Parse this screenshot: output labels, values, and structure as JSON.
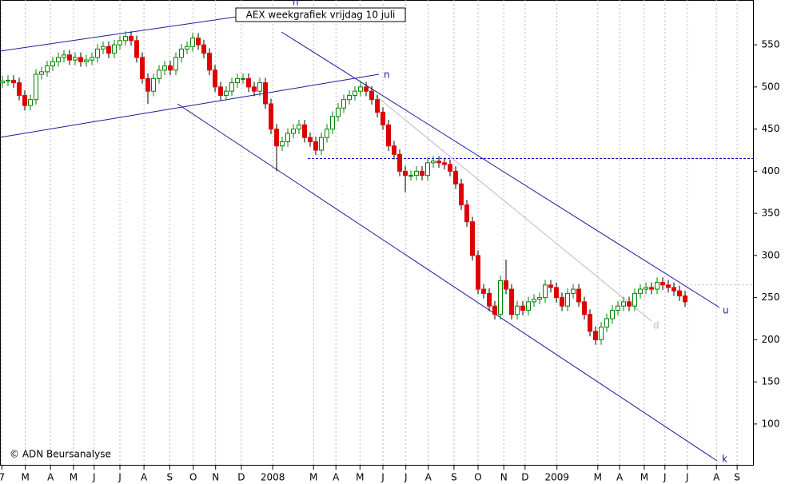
{
  "chart_data": {
    "type": "candlestick",
    "title": "AEX weekgrafiek vrijdag 10 juli",
    "credit": "© ADN Beursanalyse",
    "annotations": [
      "n",
      "n",
      "u",
      "k",
      "d"
    ],
    "series": {
      "up_color": "#008000",
      "down_color": "#e00000",
      "open": [
        505,
        507,
        508,
        505,
        490,
        478,
        485,
        515,
        518,
        525,
        530,
        535,
        538,
        532,
        535,
        530,
        532,
        535,
        545,
        548,
        540,
        550,
        555,
        560,
        555,
        535,
        510,
        495,
        510,
        520,
        525,
        520,
        535,
        545,
        548,
        558,
        550,
        540,
        520,
        500,
        490,
        495,
        505,
        510,
        510,
        500,
        495,
        505,
        480,
        450,
        430,
        435,
        445,
        450,
        455,
        440,
        435,
        425,
        440,
        450,
        465,
        475,
        485,
        490,
        495,
        500,
        495,
        485,
        470,
        455,
        430,
        420,
        400,
        395,
        395,
        400,
        395,
        410,
        412,
        410,
        408,
        400,
        385,
        360,
        340,
        300,
        260,
        255,
        240,
        230,
        270,
        260,
        230,
        240,
        235,
        245,
        248,
        250,
        265,
        262,
        250,
        240,
        255,
        260,
        245,
        230,
        210,
        200,
        215,
        225,
        235,
        240,
        245,
        240,
        255,
        260,
        262,
        260,
        268,
        265,
        262,
        258,
        252
      ],
      "high": [
        513,
        514,
        514,
        511,
        496,
        491,
        521,
        524,
        531,
        536,
        541,
        544,
        544,
        541,
        541,
        538,
        541,
        551,
        554,
        554,
        556,
        561,
        566,
        566,
        561,
        541,
        516,
        516,
        526,
        531,
        531,
        541,
        551,
        554,
        564,
        564,
        556,
        546,
        526,
        506,
        501,
        511,
        516,
        516,
        516,
        506,
        511,
        511,
        486,
        456,
        441,
        451,
        456,
        461,
        461,
        446,
        441,
        446,
        456,
        471,
        481,
        491,
        496,
        501,
        506,
        506,
        501,
        491,
        476,
        461,
        436,
        426,
        406,
        401,
        406,
        406,
        416,
        418,
        418,
        416,
        414,
        406,
        391,
        366,
        346,
        306,
        266,
        261,
        246,
        276,
        295,
        266,
        246,
        246,
        251,
        254,
        256,
        271,
        271,
        268,
        256,
        261,
        266,
        266,
        251,
        236,
        216,
        221,
        231,
        241,
        246,
        251,
        251,
        261,
        266,
        268,
        268,
        274,
        274,
        271,
        268,
        264,
        258
      ],
      "low": [
        499,
        501,
        499,
        484,
        472,
        472,
        479,
        509,
        512,
        519,
        524,
        529,
        526,
        526,
        524,
        524,
        526,
        529,
        539,
        534,
        534,
        544,
        549,
        549,
        529,
        504,
        480,
        489,
        504,
        514,
        514,
        514,
        529,
        539,
        542,
        544,
        534,
        514,
        494,
        484,
        484,
        489,
        499,
        504,
        494,
        489,
        489,
        474,
        444,
        400,
        424,
        429,
        439,
        444,
        434,
        429,
        419,
        419,
        434,
        444,
        459,
        469,
        479,
        484,
        489,
        489,
        479,
        464,
        449,
        424,
        414,
        394,
        375,
        389,
        389,
        389,
        389,
        404,
        404,
        402,
        394,
        379,
        354,
        334,
        294,
        254,
        249,
        234,
        224,
        224,
        254,
        224,
        224,
        229,
        229,
        239,
        242,
        244,
        256,
        244,
        234,
        234,
        249,
        239,
        224,
        204,
        194,
        194,
        209,
        219,
        229,
        234,
        234,
        234,
        249,
        254,
        254,
        254,
        259,
        256,
        252,
        246,
        239
      ],
      "close": [
        507,
        508,
        505,
        490,
        478,
        485,
        515,
        518,
        525,
        530,
        535,
        538,
        532,
        535,
        530,
        532,
        535,
        545,
        548,
        540,
        550,
        555,
        560,
        555,
        535,
        510,
        495,
        510,
        520,
        525,
        520,
        535,
        545,
        548,
        558,
        550,
        540,
        520,
        500,
        490,
        495,
        505,
        510,
        510,
        500,
        495,
        505,
        480,
        450,
        430,
        435,
        445,
        450,
        455,
        440,
        435,
        425,
        440,
        450,
        465,
        475,
        485,
        490,
        495,
        500,
        495,
        485,
        470,
        455,
        430,
        420,
        400,
        395,
        395,
        400,
        395,
        410,
        412,
        410,
        408,
        400,
        385,
        360,
        340,
        300,
        260,
        255,
        240,
        230,
        270,
        260,
        230,
        240,
        235,
        245,
        248,
        250,
        265,
        262,
        250,
        240,
        255,
        260,
        245,
        230,
        210,
        200,
        215,
        225,
        235,
        240,
        245,
        240,
        255,
        260,
        262,
        260,
        268,
        265,
        262,
        258,
        252,
        245
      ]
    },
    "hlines": [
      {
        "value": 415,
        "color": "#0000cc"
      },
      {
        "value": 265,
        "color": "#cccccc"
      }
    ],
    "xlim": [
      -0.43,
      134.14
    ],
    "xticks": [
      {
        "value": -0.1,
        "label": "7"
      },
      {
        "value": 4.1,
        "label": "M"
      },
      {
        "value": 8.6,
        "label": "A"
      },
      {
        "value": 12.7,
        "label": "M"
      },
      {
        "value": 16.4,
        "label": "J"
      },
      {
        "value": 21,
        "label": "J"
      },
      {
        "value": 25.3,
        "label": "A"
      },
      {
        "value": 29.9,
        "label": "S"
      },
      {
        "value": 34.1,
        "label": "O"
      },
      {
        "value": 38.1,
        "label": "N"
      },
      {
        "value": 42.7,
        "label": "D"
      },
      {
        "value": 48.3,
        "label": "2008"
      },
      {
        "value": 55.6,
        "label": "M"
      },
      {
        "value": 59.6,
        "label": "A"
      },
      {
        "value": 63.9,
        "label": "M"
      },
      {
        "value": 68,
        "label": "J"
      },
      {
        "value": 72.1,
        "label": "J"
      },
      {
        "value": 76.1,
        "label": "A"
      },
      {
        "value": 80.7,
        "label": "S"
      },
      {
        "value": 85,
        "label": "O"
      },
      {
        "value": 89.6,
        "label": "N"
      },
      {
        "value": 93.4,
        "label": "D"
      },
      {
        "value": 99.1,
        "label": "2009"
      },
      {
        "value": 106.4,
        "label": "M"
      },
      {
        "value": 110.3,
        "label": "A"
      },
      {
        "value": 114.7,
        "label": "M"
      },
      {
        "value": 118.4,
        "label": "J"
      },
      {
        "value": 122.4,
        "label": "J"
      },
      {
        "value": 127.6,
        "label": "A"
      },
      {
        "value": 131.3,
        "label": "S"
      }
    ],
    "ylim": [
      50.6,
      603.2
    ],
    "yticks": [
      100,
      150,
      200,
      250,
      300,
      350,
      400,
      450,
      500,
      550
    ],
    "grid": true
  }
}
